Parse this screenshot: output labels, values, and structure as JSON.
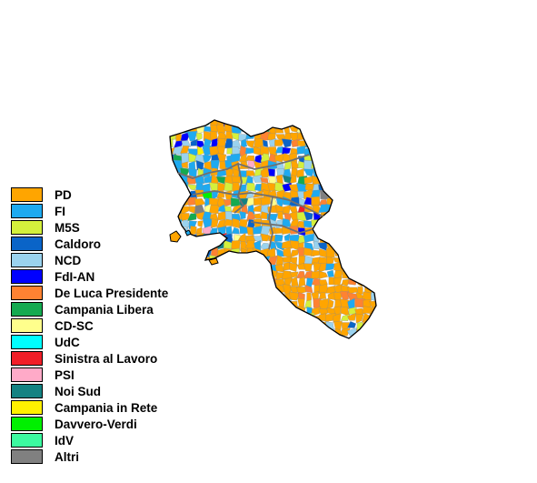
{
  "map": {
    "region": "Campania",
    "legend": [
      {
        "label": "PD",
        "color": "#FFA500"
      },
      {
        "label": "FI",
        "color": "#1EAAF0"
      },
      {
        "label": "M5S",
        "color": "#D4F03C"
      },
      {
        "label": "Caldoro",
        "color": "#0A64C8"
      },
      {
        "label": "NCD",
        "color": "#9AD2EE"
      },
      {
        "label": "FdI-AN",
        "color": "#0000FF"
      },
      {
        "label": "De Luca Presidente",
        "color": "#FF8232"
      },
      {
        "label": "Campania Libera",
        "color": "#14AA50"
      },
      {
        "label": "CD-SC",
        "color": "#FFFF8C"
      },
      {
        "label": "UdC",
        "color": "#00FFFF"
      },
      {
        "label": "Sinistra al Lavoro",
        "color": "#F01E28"
      },
      {
        "label": "PSI",
        "color": "#FFAAC8"
      },
      {
        "label": "Noi Sud",
        "color": "#148282"
      },
      {
        "label": "Campania in Rete",
        "color": "#FFF000"
      },
      {
        "label": "Davvero-Verdi",
        "color": "#00F000"
      },
      {
        "label": "IdV",
        "color": "#3CFAA0"
      },
      {
        "label": "Altri",
        "color": "#808080"
      }
    ]
  }
}
